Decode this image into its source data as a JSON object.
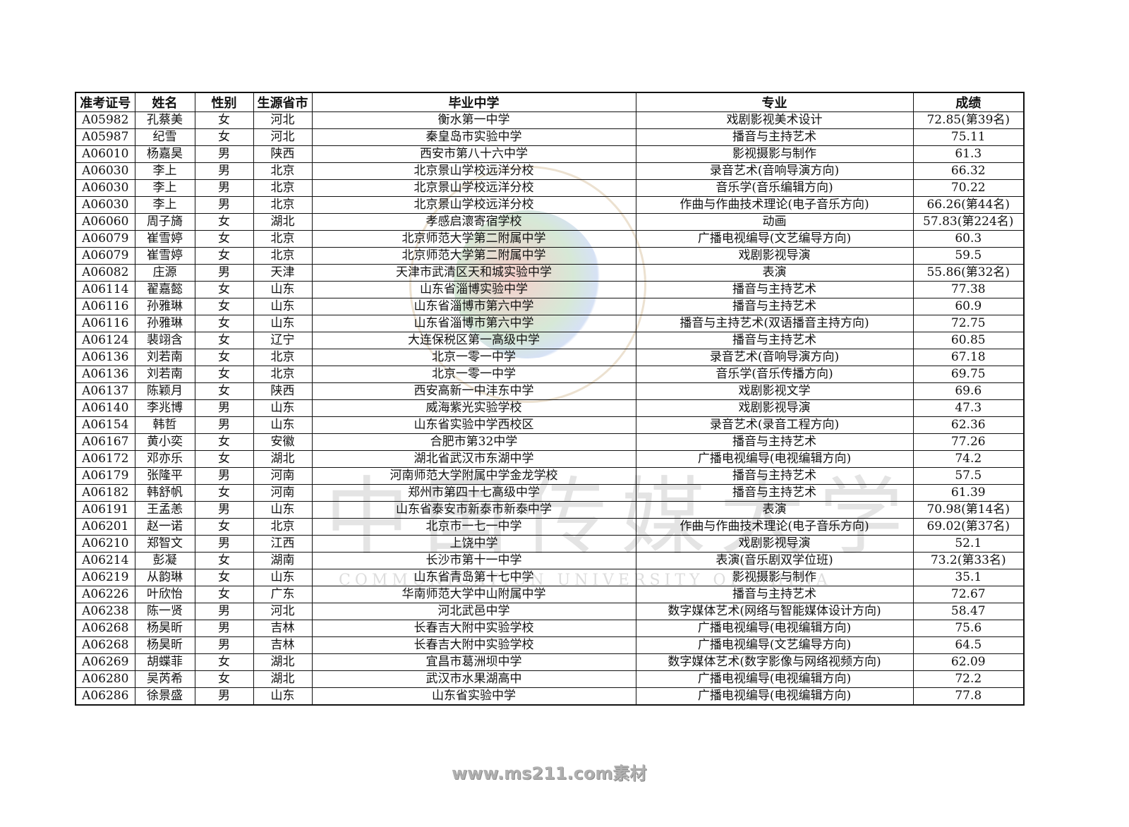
{
  "watermark": {
    "cn": "中国传媒大学",
    "en": "COMMUNICATION UNIVERSITY OF CHINA"
  },
  "table": {
    "headers": [
      "准考证号",
      "姓名",
      "性别",
      "生源省市",
      "毕业中学",
      "专业",
      "成绩"
    ],
    "rows": [
      [
        "A05982",
        "孔蔡美",
        "女",
        "河北",
        "衡水第一中学",
        "戏剧影视美术设计",
        "72.85(第39名)"
      ],
      [
        "A05987",
        "纪雪",
        "女",
        "河北",
        "秦皇岛市实验中学",
        "播音与主持艺术",
        "75.11"
      ],
      [
        "A06010",
        "杨嘉昊",
        "男",
        "陕西",
        "西安市第八十六中学",
        "影视摄影与制作",
        "61.3"
      ],
      [
        "A06030",
        "李上",
        "男",
        "北京",
        "北京景山学校远洋分校",
        "录音艺术(音响导演方向)",
        "66.32"
      ],
      [
        "A06030",
        "李上",
        "男",
        "北京",
        "北京景山学校远洋分校",
        "音乐学(音乐编辑方向)",
        "70.22"
      ],
      [
        "A06030",
        "李上",
        "男",
        "北京",
        "北京景山学校远洋分校",
        "作曲与作曲技术理论(电子音乐方向)",
        "66.26(第44名)"
      ],
      [
        "A06060",
        "周子旖",
        "女",
        "湖北",
        "孝感启瀤寄宿学校",
        "动画",
        "57.83(第224名)"
      ],
      [
        "A06079",
        "崔雪婷",
        "女",
        "北京",
        "北京师范大学第二附属中学",
        "广播电视编导(文艺编导方向)",
        "60.3"
      ],
      [
        "A06079",
        "崔雪婷",
        "女",
        "北京",
        "北京师范大学第二附属中学",
        "戏剧影视导演",
        "59.5"
      ],
      [
        "A06082",
        "庄源",
        "男",
        "天津",
        "天津市武清区天和城实验中学",
        "表演",
        "55.86(第32名)"
      ],
      [
        "A06114",
        "翟嘉懿",
        "女",
        "山东",
        "山东省淄博实验中学",
        "播音与主持艺术",
        "77.38"
      ],
      [
        "A06116",
        "孙雅琳",
        "女",
        "山东",
        "山东省淄博市第六中学",
        "播音与主持艺术",
        "60.9"
      ],
      [
        "A06116",
        "孙雅琳",
        "女",
        "山东",
        "山东省淄博市第六中学",
        "播音与主持艺术(双语播音主持方向)",
        "72.75"
      ],
      [
        "A06124",
        "裴翊含",
        "女",
        "辽宁",
        "大连保税区第一高级中学",
        "播音与主持艺术",
        "60.85"
      ],
      [
        "A06136",
        "刘若南",
        "女",
        "北京",
        "北京一零一中学",
        "录音艺术(音响导演方向)",
        "67.18"
      ],
      [
        "A06136",
        "刘若南",
        "女",
        "北京",
        "北京一零一中学",
        "音乐学(音乐传播方向)",
        "69.75"
      ],
      [
        "A06137",
        "陈颖月",
        "女",
        "陕西",
        "西安高新一中沣东中学",
        "戏剧影视文学",
        "69.6"
      ],
      [
        "A06140",
        "李兆博",
        "男",
        "山东",
        "威海紫光实验学校",
        "戏剧影视导演",
        "47.3"
      ],
      [
        "A06154",
        "韩哲",
        "男",
        "山东",
        "山东省实验中学西校区",
        "录音艺术(录音工程方向)",
        "62.36"
      ],
      [
        "A06167",
        "黄小奕",
        "女",
        "安徽",
        "合肥市第32中学",
        "播音与主持艺术",
        "77.26"
      ],
      [
        "A06172",
        "邓亦乐",
        "女",
        "湖北",
        "湖北省武汉市东湖中学",
        "广播电视编导(电视编辑方向)",
        "74.2"
      ],
      [
        "A06179",
        "张隆平",
        "男",
        "河南",
        "河南师范大学附属中学金龙学校",
        "播音与主持艺术",
        "57.5"
      ],
      [
        "A06182",
        "韩舒帆",
        "女",
        "河南",
        "郑州市第四十七高级中学",
        "播音与主持艺术",
        "61.39"
      ],
      [
        "A06191",
        "王孟恙",
        "男",
        "山东",
        "山东省泰安市新泰市新泰中学",
        "表演",
        "70.98(第14名)"
      ],
      [
        "A06201",
        "赵一诺",
        "女",
        "北京",
        "北京市一七一中学",
        "作曲与作曲技术理论(电子音乐方向)",
        "69.02(第37名)"
      ],
      [
        "A06210",
        "郑智文",
        "男",
        "江西",
        "上饶中学",
        "戏剧影视导演",
        "52.1"
      ],
      [
        "A06214",
        "彭凝",
        "女",
        "湖南",
        "长沙市第十一中学",
        "表演(音乐剧双学位班)",
        "73.2(第33名)"
      ],
      [
        "A06219",
        "从韵琳",
        "女",
        "山东",
        "山东省青岛第十七中学",
        "影视摄影与制作",
        "35.1"
      ],
      [
        "A06226",
        "叶欣怡",
        "女",
        "广东",
        "华南师范大学中山附属中学",
        "播音与主持艺术",
        "72.67"
      ],
      [
        "A06238",
        "陈一贤",
        "男",
        "河北",
        "河北武邑中学",
        "数字媒体艺术(网络与智能媒体设计方向)",
        "58.47"
      ],
      [
        "A06268",
        "杨昊昕",
        "男",
        "吉林",
        "长春吉大附中实验学校",
        "广播电视编导(电视编辑方向)",
        "75.6"
      ],
      [
        "A06268",
        "杨昊昕",
        "男",
        "吉林",
        "长春吉大附中实验学校",
        "广播电视编导(文艺编导方向)",
        "64.5"
      ],
      [
        "A06269",
        "胡蝶菲",
        "女",
        "湖北",
        "宜昌市葛洲坝中学",
        "数字媒体艺术(数字影像与网络视频方向)",
        "62.09"
      ],
      [
        "A06280",
        "吴芮希",
        "女",
        "湖北",
        "武汉市水果湖高中",
        "广播电视编导(电视编辑方向)",
        "72.2"
      ],
      [
        "A06286",
        "徐景盛",
        "男",
        "山东",
        "山东省实验中学",
        "广播电视编导(电视编辑方向)",
        "77.8"
      ]
    ]
  },
  "footer": "www.ms211.com素材"
}
